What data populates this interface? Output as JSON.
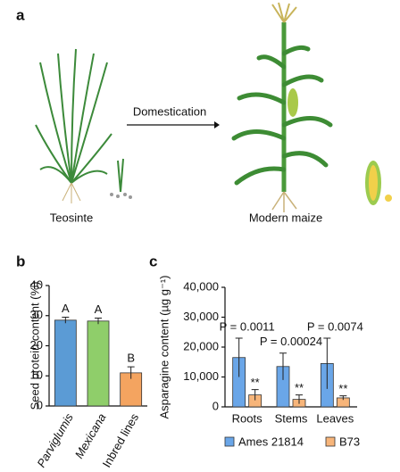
{
  "illustration": {
    "label": "a",
    "arrow_label": "Domestication",
    "left_label": "Teosinte",
    "right_label": "Modern maize"
  },
  "chart_data": [
    {
      "type": "bar",
      "panel": "b",
      "y_label": "Seed protein content (%)",
      "categories": [
        "Parviglumis",
        "Mexicana",
        "Inbred lines"
      ],
      "values": [
        28.5,
        28.2,
        11
      ],
      "errors": [
        1,
        1,
        2
      ],
      "colors": [
        "#5b9bd5",
        "#8fce6a",
        "#f4a460"
      ],
      "value_labels": [
        "A",
        "A",
        "B"
      ],
      "ylim": [
        0,
        40
      ],
      "yticks": [
        0,
        10,
        20,
        30,
        40
      ]
    },
    {
      "type": "grouped_bar",
      "panel": "c",
      "y_label": "Asparagine content (µg g⁻¹)",
      "categories": [
        "Roots",
        "Stems",
        "Leaves"
      ],
      "series": [
        {
          "name": "Ames 21814",
          "color": "#6aa6e8",
          "values": [
            16500,
            13500,
            14500
          ],
          "errors": [
            6500,
            4500,
            8500
          ]
        },
        {
          "name": "B73",
          "color": "#f7b57a",
          "values": [
            4000,
            2500,
            3000
          ],
          "errors": [
            1800,
            1500,
            700
          ],
          "value_labels": [
            "**",
            "**",
            "**"
          ]
        }
      ],
      "annotations": [
        "P = 0.0011",
        "P = 0.00024",
        "P = 0.0074"
      ],
      "ylim": [
        0,
        40000
      ],
      "yticks": [
        0,
        {
          "value": 10000,
          "label": "10,000"
        },
        {
          "value": 20000,
          "label": "20,000"
        },
        {
          "value": 30000,
          "label": "30,000"
        },
        {
          "value": 40000,
          "label": "40,000"
        }
      ],
      "legend": "bottom"
    }
  ]
}
